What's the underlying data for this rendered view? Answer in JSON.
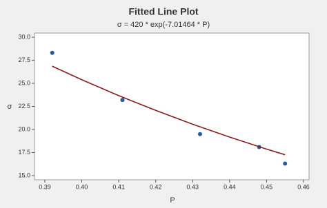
{
  "chart_data": {
    "type": "scatter",
    "title": "Fitted Line Plot",
    "subtitle": "σ = 420 * exp(-7.01464 * P)",
    "x_label": "P",
    "y_label": "σ",
    "series": [
      {
        "type": "scatter",
        "color": "#1f5aa6",
        "x": [
          0.392,
          0.411,
          0.432,
          0.448,
          0.455
        ],
        "values": [
          28.3,
          23.2,
          19.5,
          18.1,
          16.3
        ]
      },
      {
        "type": "line",
        "color": "#8b1c1c",
        "x": [
          0.392,
          0.4,
          0.41,
          0.42,
          0.43,
          0.44,
          0.45,
          0.455
        ],
        "values": [
          26.86,
          25.39,
          23.67,
          22.07,
          20.57,
          19.18,
          17.87,
          17.26
        ]
      }
    ],
    "xlim": [
      0.3872,
      0.4615
    ],
    "ylim": [
      14.55,
      30.45
    ],
    "xticks": [
      0.39,
      {
        "value": 0.4,
        "label": "0.40"
      },
      0.41,
      0.42,
      0.43,
      0.44,
      0.45,
      0.46
    ],
    "yticks": [
      {
        "value": 15,
        "label": "15.0"
      },
      17.5,
      {
        "value": 20,
        "label": "20.0"
      },
      22.5,
      {
        "value": 25,
        "label": "25.0"
      },
      27.5,
      {
        "value": 30,
        "label": "30.0"
      }
    ],
    "grid": false
  }
}
